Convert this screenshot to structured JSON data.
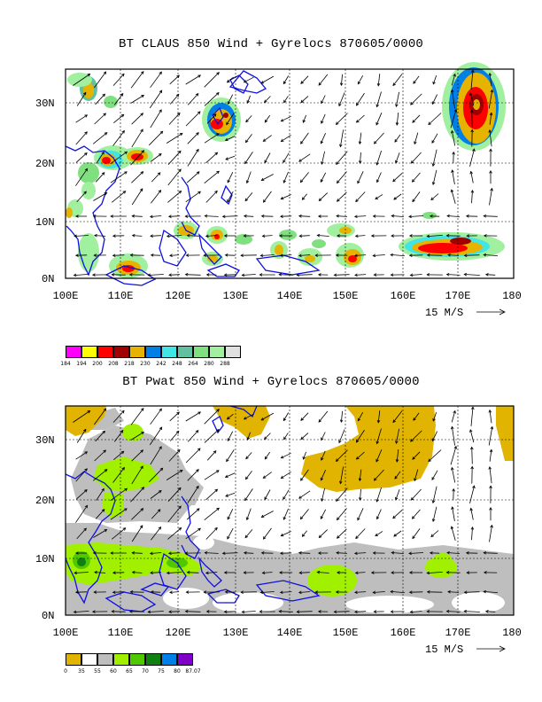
{
  "panels": [
    {
      "title": "BT CLAUS 850 Wind + Gyrelocs 870605/0000",
      "field": "brightness temperature",
      "colorbar": {
        "labels": [
          "184",
          "194",
          "200",
          "208",
          "218",
          "230",
          "242",
          "248",
          "264",
          "280",
          "288"
        ],
        "colors": [
          "#ff00ff",
          "#ffff00",
          "#ff0000",
          "#a00000",
          "#e6b400",
          "#0080e6",
          "#40e6e6",
          "#60c0a0",
          "#80e080",
          "#a0f0a0",
          "#e0e0e0"
        ]
      },
      "wind_scale": "15 M/S"
    },
    {
      "title": "BT Pwat 850 Wind + Gyrelocs 870605/0000",
      "field": "precipitable water",
      "colorbar": {
        "labels": [
          "0",
          "35",
          "55",
          "60",
          "65",
          "70",
          "75",
          "80",
          "87.07"
        ],
        "colors": [
          "#e0b400",
          "#ffffff",
          "#bebebe",
          "#a0f000",
          "#50c800",
          "#108010",
          "#0080e6",
          "#8000c8"
        ]
      },
      "wind_scale": "15 M/S"
    }
  ],
  "axes": {
    "x_ticks": [
      "100E",
      "110E",
      "120E",
      "130E",
      "140E",
      "150E",
      "160E",
      "170E",
      "180"
    ],
    "y_ticks": [
      "0N",
      "10N",
      "20N",
      "30N"
    ],
    "lon_range": [
      100,
      180
    ],
    "lat_range": [
      0,
      36
    ]
  },
  "chart_data": [
    {
      "type": "heatmap",
      "title": "BT CLAUS 850 Wind + Gyrelocs 870605/0000",
      "xlim": [
        100,
        180
      ],
      "ylim": [
        0,
        36
      ],
      "overlay": "850 hPa wind vectors",
      "vector_reference": "15 M/S",
      "colorbar_levels": [
        184,
        194,
        200,
        208,
        218,
        230,
        242,
        248,
        264,
        280,
        288
      ]
    },
    {
      "type": "heatmap",
      "title": "BT Pwat 850 Wind + Gyrelocs 870605/0000",
      "xlim": [
        100,
        180
      ],
      "ylim": [
        0,
        36
      ],
      "overlay": "850 hPa wind vectors",
      "vector_reference": "15 M/S",
      "colorbar_levels": [
        0,
        35,
        55,
        60,
        65,
        70,
        75,
        80,
        87.07
      ]
    }
  ]
}
